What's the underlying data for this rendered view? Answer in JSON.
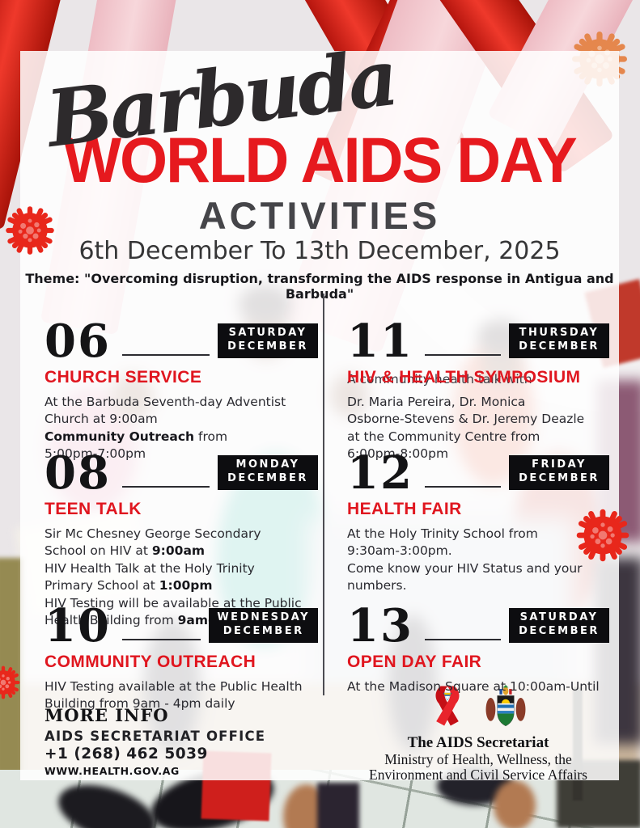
{
  "header": {
    "script_title": "Barbuda",
    "main_title": "WORLD AIDS DAY",
    "subtitle": "ACTIVITIES",
    "date_range": "6th December To 13th December, 2025",
    "theme": "Theme: \"Overcoming disruption, transforming the AIDS response in Antigua and Barbuda\""
  },
  "events": [
    {
      "id": "church-service",
      "column": "left",
      "day": "06",
      "weekday": "SATURDAY",
      "month": "DECEMBER",
      "title": "CHURCH SERVICE",
      "lines": [
        [
          {
            "t": "At the Barbuda Seventh-day Adventist"
          }
        ],
        [
          {
            "t": "Church at 9:00am"
          }
        ],
        [
          {
            "t": "Community Outreach",
            "b": true
          },
          {
            "t": " from"
          }
        ],
        [
          {
            "t": "5:00pm-7:00pm"
          }
        ]
      ]
    },
    {
      "id": "teen-talk",
      "column": "left",
      "day": "08",
      "weekday": "MONDAY",
      "month": "DECEMBER",
      "title": "TEEN TALK",
      "lines": [
        [
          {
            "t": "Sir Mc Chesney George Secondary"
          }
        ],
        [
          {
            "t": "School on HIV at "
          },
          {
            "t": "9:00am",
            "b": true
          }
        ],
        [
          {
            "t": "HIV Health Talk at the Holy Trinity"
          }
        ],
        [
          {
            "t": "Primary School at "
          },
          {
            "t": "1:00pm",
            "b": true
          }
        ],
        [
          {
            "t": "HIV Testing will be available at the Public"
          }
        ],
        [
          {
            "t": "Health Building from "
          },
          {
            "t": "9am-4pm daily",
            "b": true
          }
        ]
      ]
    },
    {
      "id": "community-outreach",
      "column": "left",
      "day": "10",
      "weekday": "WEDNESDAY",
      "month": "DECEMBER",
      "title": "COMMUNITY OUTREACH",
      "lines": [
        [
          {
            "t": "HIV Testing available at the Public Health"
          }
        ],
        [
          {
            "t": "Building from 9am - 4pm daily"
          }
        ]
      ]
    },
    {
      "id": "hiv-health-symposium",
      "column": "right",
      "day": "11",
      "weekday": "THURSDAY",
      "month": "DECEMBER",
      "title": "HIV & HEALTH SYMPOSIUM",
      "title_overlap_text": "A community health talk with",
      "lines": [
        [
          {
            "t": "Dr. Maria Pereira, Dr. Monica"
          }
        ],
        [
          {
            "t": "Osborne-Stevens & Dr. Jeremy Deazle"
          }
        ],
        [
          {
            "t": "at the Community Centre from"
          }
        ],
        [
          {
            "t": "6:00pm-8:00pm"
          }
        ]
      ]
    },
    {
      "id": "health-fair",
      "column": "right",
      "day": "12",
      "weekday": "FRIDAY",
      "month": "DECEMBER",
      "title": "HEALTH FAIR",
      "lines": [
        [
          {
            "t": "At the Holy Trinity School from"
          }
        ],
        [
          {
            "t": "9:30am-3:00pm."
          }
        ],
        [
          {
            "t": "Come know your HIV Status and your"
          }
        ],
        [
          {
            "t": "numbers."
          }
        ]
      ]
    },
    {
      "id": "open-day-fair",
      "column": "right",
      "day": "13",
      "weekday": "SATURDAY",
      "month": "DECEMBER",
      "title": "OPEN DAY FAIR",
      "lines": [
        [
          {
            "t": "At the Madison Square at 10:00am-Until"
          }
        ]
      ]
    }
  ],
  "more_info": {
    "heading": "MORE INFO",
    "office": "AIDS SECRETARIAT OFFICE",
    "phone": "+1 (268) 462 5039",
    "website": "WWW.HEALTH.GOV.AG"
  },
  "footer": {
    "org": "The AIDS Secretariat",
    "ministry_line1": "Ministry of Health, Wellness, the",
    "ministry_line2": "Environment and Civil Service Affairs"
  },
  "colors": {
    "accent_red": "#e6191e",
    "badge_black": "#0d0d10",
    "virus_red": "#e8271b",
    "virus_orange": "#e5874d"
  },
  "icons": {
    "virus": "virus-icon",
    "ribbon": "aids-ribbon-logo",
    "crest": "coat-of-arms-logo"
  }
}
